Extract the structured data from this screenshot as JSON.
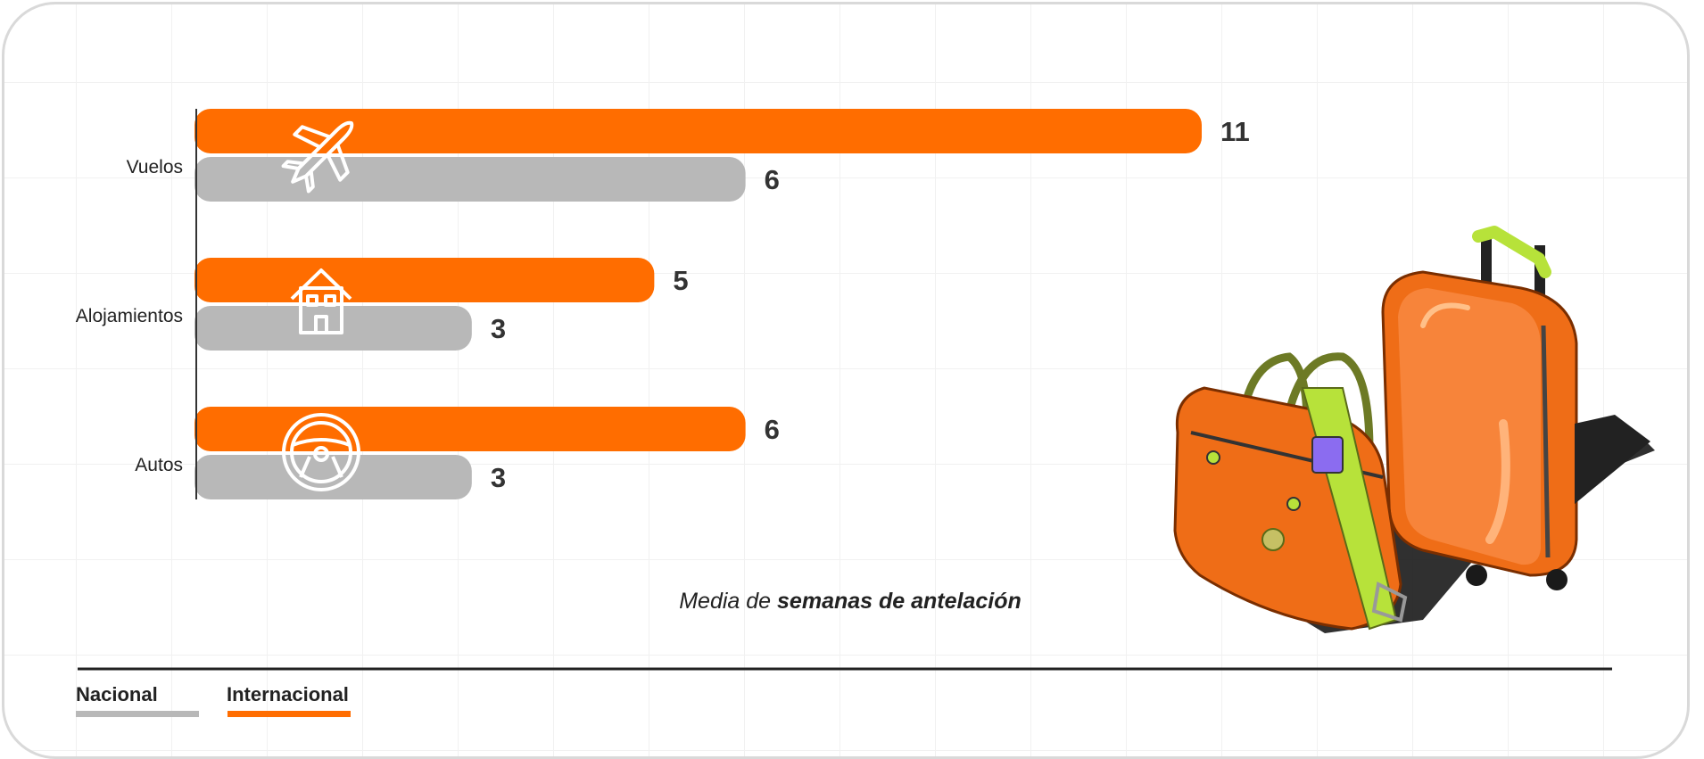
{
  "chart_data": {
    "type": "bar",
    "orientation": "horizontal",
    "categories": [
      "Vuelos",
      "Alojamientos",
      "Autos"
    ],
    "category_icons": [
      "airplane-icon",
      "house-icon",
      "steering-wheel-icon"
    ],
    "series": [
      {
        "name": "Internacional",
        "values": [
          11,
          5,
          6
        ],
        "color": "#ff6d00"
      },
      {
        "name": "Nacional",
        "values": [
          6,
          3,
          3
        ],
        "color": "#b8b8b8"
      }
    ],
    "xlim": [
      0,
      11
    ],
    "grid": true,
    "legend_position": "bottom-left",
    "caption": {
      "prefix": "Media de ",
      "emphasis": "semanas de antelación"
    },
    "illustration": "luggage-illustration"
  },
  "legend": {
    "nacional_label": "Nacional",
    "internacional_label": "Internacional"
  }
}
